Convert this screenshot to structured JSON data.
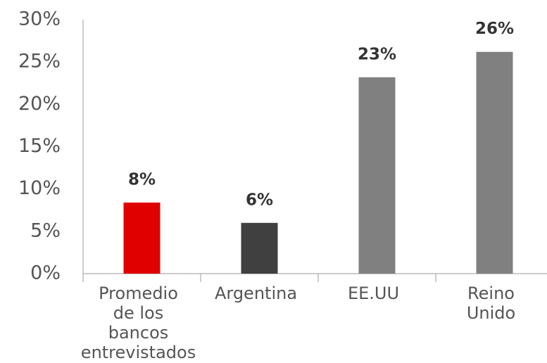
{
  "chart_data": {
    "type": "bar",
    "categories": [
      [
        "Promedio",
        "de los",
        "bancos",
        "entrevistados"
      ],
      [
        "Argentina"
      ],
      [
        "EE.UU"
      ],
      [
        "Reino",
        "Unido"
      ]
    ],
    "values": [
      8.4,
      6,
      23.2,
      26.2
    ],
    "value_labels": [
      "8%",
      "6%",
      "23%",
      "26%"
    ],
    "colors": [
      "#e00000",
      "#404040",
      "#808080",
      "#808080"
    ],
    "ylim": [
      0,
      30
    ],
    "yticks": [
      {
        "value": 0,
        "label": "0%"
      },
      {
        "value": 5,
        "label": "5%"
      },
      {
        "value": 10,
        "label": "10%"
      },
      {
        "value": 15,
        "label": "15%"
      },
      {
        "value": 20,
        "label": "20%"
      },
      {
        "value": 25,
        "label": "25%"
      },
      {
        "value": 30,
        "label": "30%"
      }
    ],
    "grid": false
  }
}
